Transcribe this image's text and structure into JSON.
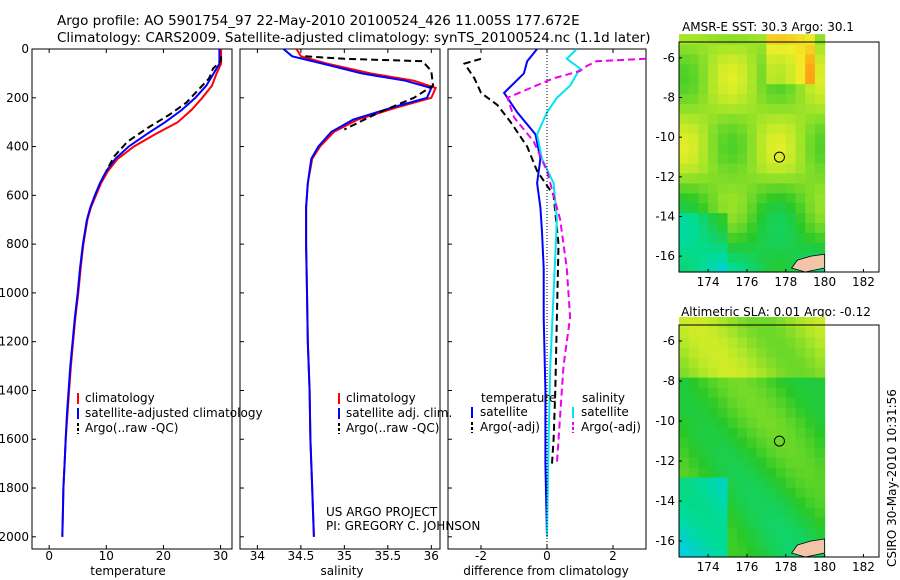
{
  "header": {
    "title_line1": "Argo profile: AO 5901754_97 22-May-2010 20100524_426 11.005S 177.672E",
    "title_line2": "Climatology: CARS2009. Satellite-adjusted climatology: synTS_20100524.nc (1.1d later)"
  },
  "credit": {
    "line1": "US ARGO PROJECT",
    "line2": "PI: GREGORY C. JOHNSON"
  },
  "timestamp": "CSIRO 30-May-2010 10:31:56",
  "colors": {
    "climatology": "#ff0000",
    "satellite": "#0000ff",
    "satellite_diff_salinity": "#00e5f0",
    "argo": "#000000",
    "argo_adj_salinity": "#ee00ee"
  },
  "chart_data": [
    {
      "id": "temperature",
      "type": "line",
      "xlabel": "temperature",
      "xlim": [
        -3,
        32
      ],
      "ylim": [
        0,
        2050
      ],
      "y_reversed": true,
      "xticks": [
        0,
        10,
        20,
        30
      ],
      "yticks": [
        0,
        200,
        400,
        600,
        800,
        1000,
        1200,
        1400,
        1600,
        1800,
        2000
      ],
      "legend": [
        "climatology",
        "satellite-adjusted climatology",
        "Argo(..raw -QC)"
      ],
      "series": [
        {
          "name": "climatology",
          "color": "#ff0000",
          "style": "solid",
          "x": [
            30.1,
            30.1,
            29.3,
            28.5,
            26.8,
            24.9,
            22.5,
            18.5,
            14.8,
            12.0,
            10.3,
            9.1,
            8.2,
            7.3,
            6.7,
            6.0,
            5.5,
            5.1,
            4.6,
            4.2,
            3.8,
            3.5,
            3.2,
            2.9,
            2.7,
            2.5,
            2.4,
            2.3
          ],
          "y": [
            0,
            60,
            100,
            150,
            200,
            250,
            300,
            350,
            400,
            450,
            500,
            550,
            600,
            650,
            700,
            800,
            900,
            1000,
            1100,
            1200,
            1300,
            1400,
            1500,
            1600,
            1700,
            1800,
            1900,
            2000
          ]
        },
        {
          "name": "satellite-adjusted climatology",
          "color": "#0000ff",
          "style": "solid",
          "x": [
            29.8,
            29.8,
            28.8,
            27.5,
            25.6,
            23.2,
            20.3,
            17.0,
            13.9,
            11.6,
            10.0,
            8.9,
            8.0,
            7.2,
            6.6,
            5.9,
            5.4,
            5.0,
            4.5,
            4.1,
            3.7,
            3.4,
            3.1,
            2.9,
            2.7,
            2.5,
            2.4,
            2.3
          ],
          "y": [
            0,
            60,
            100,
            150,
            200,
            250,
            300,
            350,
            400,
            450,
            500,
            550,
            600,
            650,
            700,
            800,
            900,
            1000,
            1100,
            1200,
            1300,
            1400,
            1500,
            1600,
            1700,
            1800,
            1900,
            2000
          ]
        },
        {
          "name": "Argo(..raw -QC)",
          "color": "#000000",
          "style": "dashed",
          "x": [
            30.1,
            30.0,
            28.7,
            28.0,
            26.0,
            24.0,
            21.0,
            17.5,
            13.7,
            11.4,
            10.0
          ],
          "y": [
            30,
            50,
            80,
            120,
            170,
            220,
            270,
            320,
            380,
            440,
            500
          ]
        }
      ]
    },
    {
      "id": "salinity",
      "type": "line",
      "xlabel": "salinity",
      "xlim": [
        33.8,
        36.1
      ],
      "ylim": [
        0,
        2050
      ],
      "y_reversed": true,
      "xticks": [
        34,
        34.5,
        35,
        35.5,
        36
      ],
      "legend": [
        "climatology",
        "satellite adj. clim.",
        "Argo(..raw -QC)"
      ],
      "series": [
        {
          "name": "climatology",
          "color": "#ff0000",
          "style": "solid",
          "x": [
            34.45,
            34.5,
            34.8,
            35.3,
            35.8,
            36.05,
            36.0,
            35.6,
            35.15,
            34.88,
            34.72,
            34.63,
            34.58,
            34.56,
            34.56,
            34.57,
            34.58,
            34.6,
            34.61,
            34.63,
            34.65
          ],
          "y": [
            0,
            30,
            60,
            100,
            130,
            160,
            200,
            240,
            290,
            340,
            400,
            450,
            550,
            650,
            800,
            1000,
            1200,
            1400,
            1600,
            1800,
            2000
          ]
        },
        {
          "name": "satellite adj. clim.",
          "color": "#0000ff",
          "style": "solid",
          "x": [
            34.3,
            34.4,
            34.75,
            35.2,
            35.7,
            36.0,
            35.95,
            35.55,
            35.1,
            34.85,
            34.7,
            34.62,
            34.58,
            34.56,
            34.56,
            34.57,
            34.58,
            34.6,
            34.61,
            34.63,
            34.65
          ],
          "y": [
            0,
            30,
            60,
            100,
            130,
            160,
            200,
            240,
            290,
            340,
            400,
            450,
            550,
            650,
            800,
            1000,
            1200,
            1400,
            1600,
            1800,
            2000
          ]
        },
        {
          "name": "Argo(..raw -QC)",
          "color": "#000000",
          "style": "dashed",
          "x": [
            34.55,
            35.0,
            35.9,
            36.0,
            36.02,
            35.8,
            35.4,
            35.0
          ],
          "y": [
            30,
            40,
            50,
            90,
            150,
            200,
            260,
            330
          ]
        }
      ]
    },
    {
      "id": "difference",
      "type": "line",
      "xlabel": "difference from climatology",
      "xlim": [
        -3,
        3
      ],
      "ylim": [
        0,
        2050
      ],
      "y_reversed": true,
      "xticks": [
        -2,
        0,
        2
      ],
      "legend_groups": [
        {
          "heading": "temperature",
          "entries": [
            "satellite",
            "Argo(-adj)"
          ]
        },
        {
          "heading": "salinity",
          "entries": [
            "satellite",
            "Argo(-adj)"
          ]
        }
      ],
      "series": [
        {
          "name": "temperature satellite",
          "color": "#0000ff",
          "style": "solid",
          "x": [
            -0.3,
            -0.6,
            -0.7,
            -1.3,
            -0.9,
            -0.35,
            -0.2,
            -0.3,
            -0.2,
            -0.15,
            -0.1,
            -0.1,
            -0.05,
            -0.05,
            0.0
          ],
          "y": [
            0,
            50,
            100,
            180,
            260,
            350,
            450,
            550,
            650,
            750,
            900,
            1100,
            1400,
            1700,
            2000
          ]
        },
        {
          "name": "temperature Argo(-adj)",
          "color": "#000000",
          "style": "dashed",
          "x": [
            -2.0,
            -2.5,
            -2.2,
            -2.0,
            -1.5,
            -1.1,
            -0.6,
            -0.3,
            0.2,
            0.35,
            0.3,
            0.25,
            0.2,
            0.15
          ],
          "y": [
            40,
            60,
            120,
            180,
            230,
            300,
            400,
            500,
            600,
            800,
            1100,
            1400,
            1600,
            1700
          ]
        },
        {
          "name": "salinity satellite",
          "color": "#00e5f0",
          "style": "solid",
          "x": [
            0.9,
            0.6,
            1.0,
            0.7,
            0.3,
            0.0,
            -0.3,
            -0.15,
            0.2,
            0.3,
            0.2,
            0.1,
            0.05,
            0.0
          ],
          "y": [
            0,
            40,
            80,
            150,
            200,
            260,
            350,
            450,
            550,
            700,
            1000,
            1300,
            1600,
            2000
          ]
        },
        {
          "name": "salinity Argo(-adj)",
          "color": "#ee00ee",
          "style": "dashed",
          "x": [
            3.0,
            1.5,
            1.2,
            1.0,
            0.2,
            -0.5,
            -1.2,
            -1.0,
            -0.4,
            0.0,
            0.4,
            0.6,
            0.7,
            0.5,
            0.3
          ],
          "y": [
            40,
            50,
            70,
            90,
            120,
            160,
            200,
            280,
            380,
            500,
            700,
            900,
            1100,
            1300,
            1700
          ]
        }
      ]
    },
    {
      "id": "sst-map",
      "type": "heatmap",
      "title": "AMSR-E SST: 30.3  Argo: 30.1",
      "xlim": [
        172.5,
        182.8
      ],
      "ylim": [
        -16.8,
        -5.2
      ],
      "xticks": [
        174,
        176,
        178,
        180,
        182
      ],
      "yticks": [
        -6,
        -8,
        -10,
        -12,
        -14,
        -16
      ],
      "data_extent_lon_max": 180,
      "float_position": {
        "lon": 177.672,
        "lat": -11.005
      }
    },
    {
      "id": "sla-map",
      "type": "heatmap",
      "title": "Altimetric SLA: 0.01  Argo: -0.12",
      "xlim": [
        172.5,
        182.8
      ],
      "ylim": [
        -16.8,
        -5.2
      ],
      "xticks": [
        174,
        176,
        178,
        180,
        182
      ],
      "yticks": [
        -6,
        -8,
        -10,
        -12,
        -14,
        -16
      ],
      "data_extent_lon_max": 180,
      "float_position": {
        "lon": 177.672,
        "lat": -11.005
      }
    }
  ]
}
